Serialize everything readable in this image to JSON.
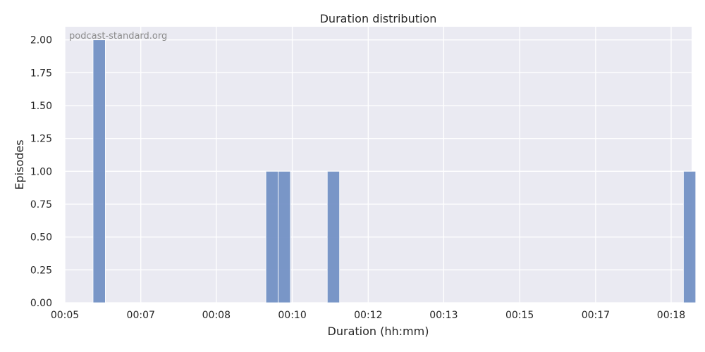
{
  "chart_data": {
    "type": "bar",
    "title": "Duration distribution",
    "xlabel": "Duration (hh:mm)",
    "ylabel": "Episodes",
    "watermark": "podcast-standard.org",
    "x_unit": "minutes",
    "bin_width": 0.27,
    "xlim": [
      5.0,
      18.78
    ],
    "ylim": [
      0,
      2.1
    ],
    "grid": true,
    "legend": "none",
    "bar_color": "#6f8ec3",
    "background_color": "#eaeaf2",
    "x_ticks": [
      {
        "value": 5.0,
        "label": "00:05"
      },
      {
        "value": 6.67,
        "label": "00:07"
      },
      {
        "value": 8.33,
        "label": "00:08"
      },
      {
        "value": 10.0,
        "label": "00:10"
      },
      {
        "value": 11.67,
        "label": "00:12"
      },
      {
        "value": 13.33,
        "label": "00:13"
      },
      {
        "value": 15.0,
        "label": "00:15"
      },
      {
        "value": 16.67,
        "label": "00:17"
      },
      {
        "value": 18.33,
        "label": "00:18"
      }
    ],
    "y_ticks": [
      {
        "value": 0.0,
        "label": "0.00"
      },
      {
        "value": 0.25,
        "label": "0.25"
      },
      {
        "value": 0.5,
        "label": "0.50"
      },
      {
        "value": 0.75,
        "label": "0.75"
      },
      {
        "value": 1.0,
        "label": "1.00"
      },
      {
        "value": 1.25,
        "label": "1.25"
      },
      {
        "value": 1.5,
        "label": "1.50"
      },
      {
        "value": 1.75,
        "label": "1.75"
      },
      {
        "value": 2.0,
        "label": "2.00"
      }
    ],
    "bins": [
      {
        "x_start": 5.62,
        "count": 2
      },
      {
        "x_start": 9.42,
        "count": 1
      },
      {
        "x_start": 9.69,
        "count": 1
      },
      {
        "x_start": 10.77,
        "count": 1
      },
      {
        "x_start": 18.6,
        "count": 1
      }
    ]
  }
}
